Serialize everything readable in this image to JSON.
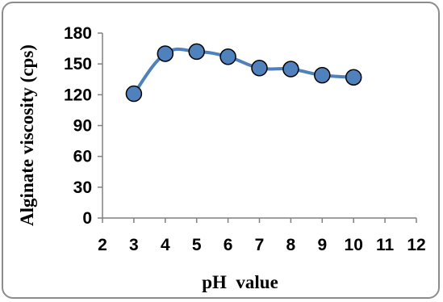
{
  "chart_data": {
    "type": "line",
    "title": "",
    "xlabel": "pH  value",
    "ylabel": "Alginate viscosity (cps)",
    "xlim": [
      2,
      12
    ],
    "ylim": [
      0,
      180
    ],
    "x_ticks": [
      2,
      3,
      4,
      5,
      6,
      7,
      8,
      9,
      10,
      11,
      12
    ],
    "y_ticks": [
      0,
      30,
      60,
      90,
      120,
      150,
      180
    ],
    "grid": false,
    "legend": "none",
    "series": [
      {
        "x": [
          3,
          4,
          5,
          6,
          7,
          8,
          9,
          10
        ],
        "y": [
          121,
          160,
          162,
          157,
          146,
          145,
          139,
          137
        ],
        "line_color": "#4f81bd",
        "marker_fill": "#4f81bd",
        "marker_edge": "#000000"
      }
    ]
  }
}
